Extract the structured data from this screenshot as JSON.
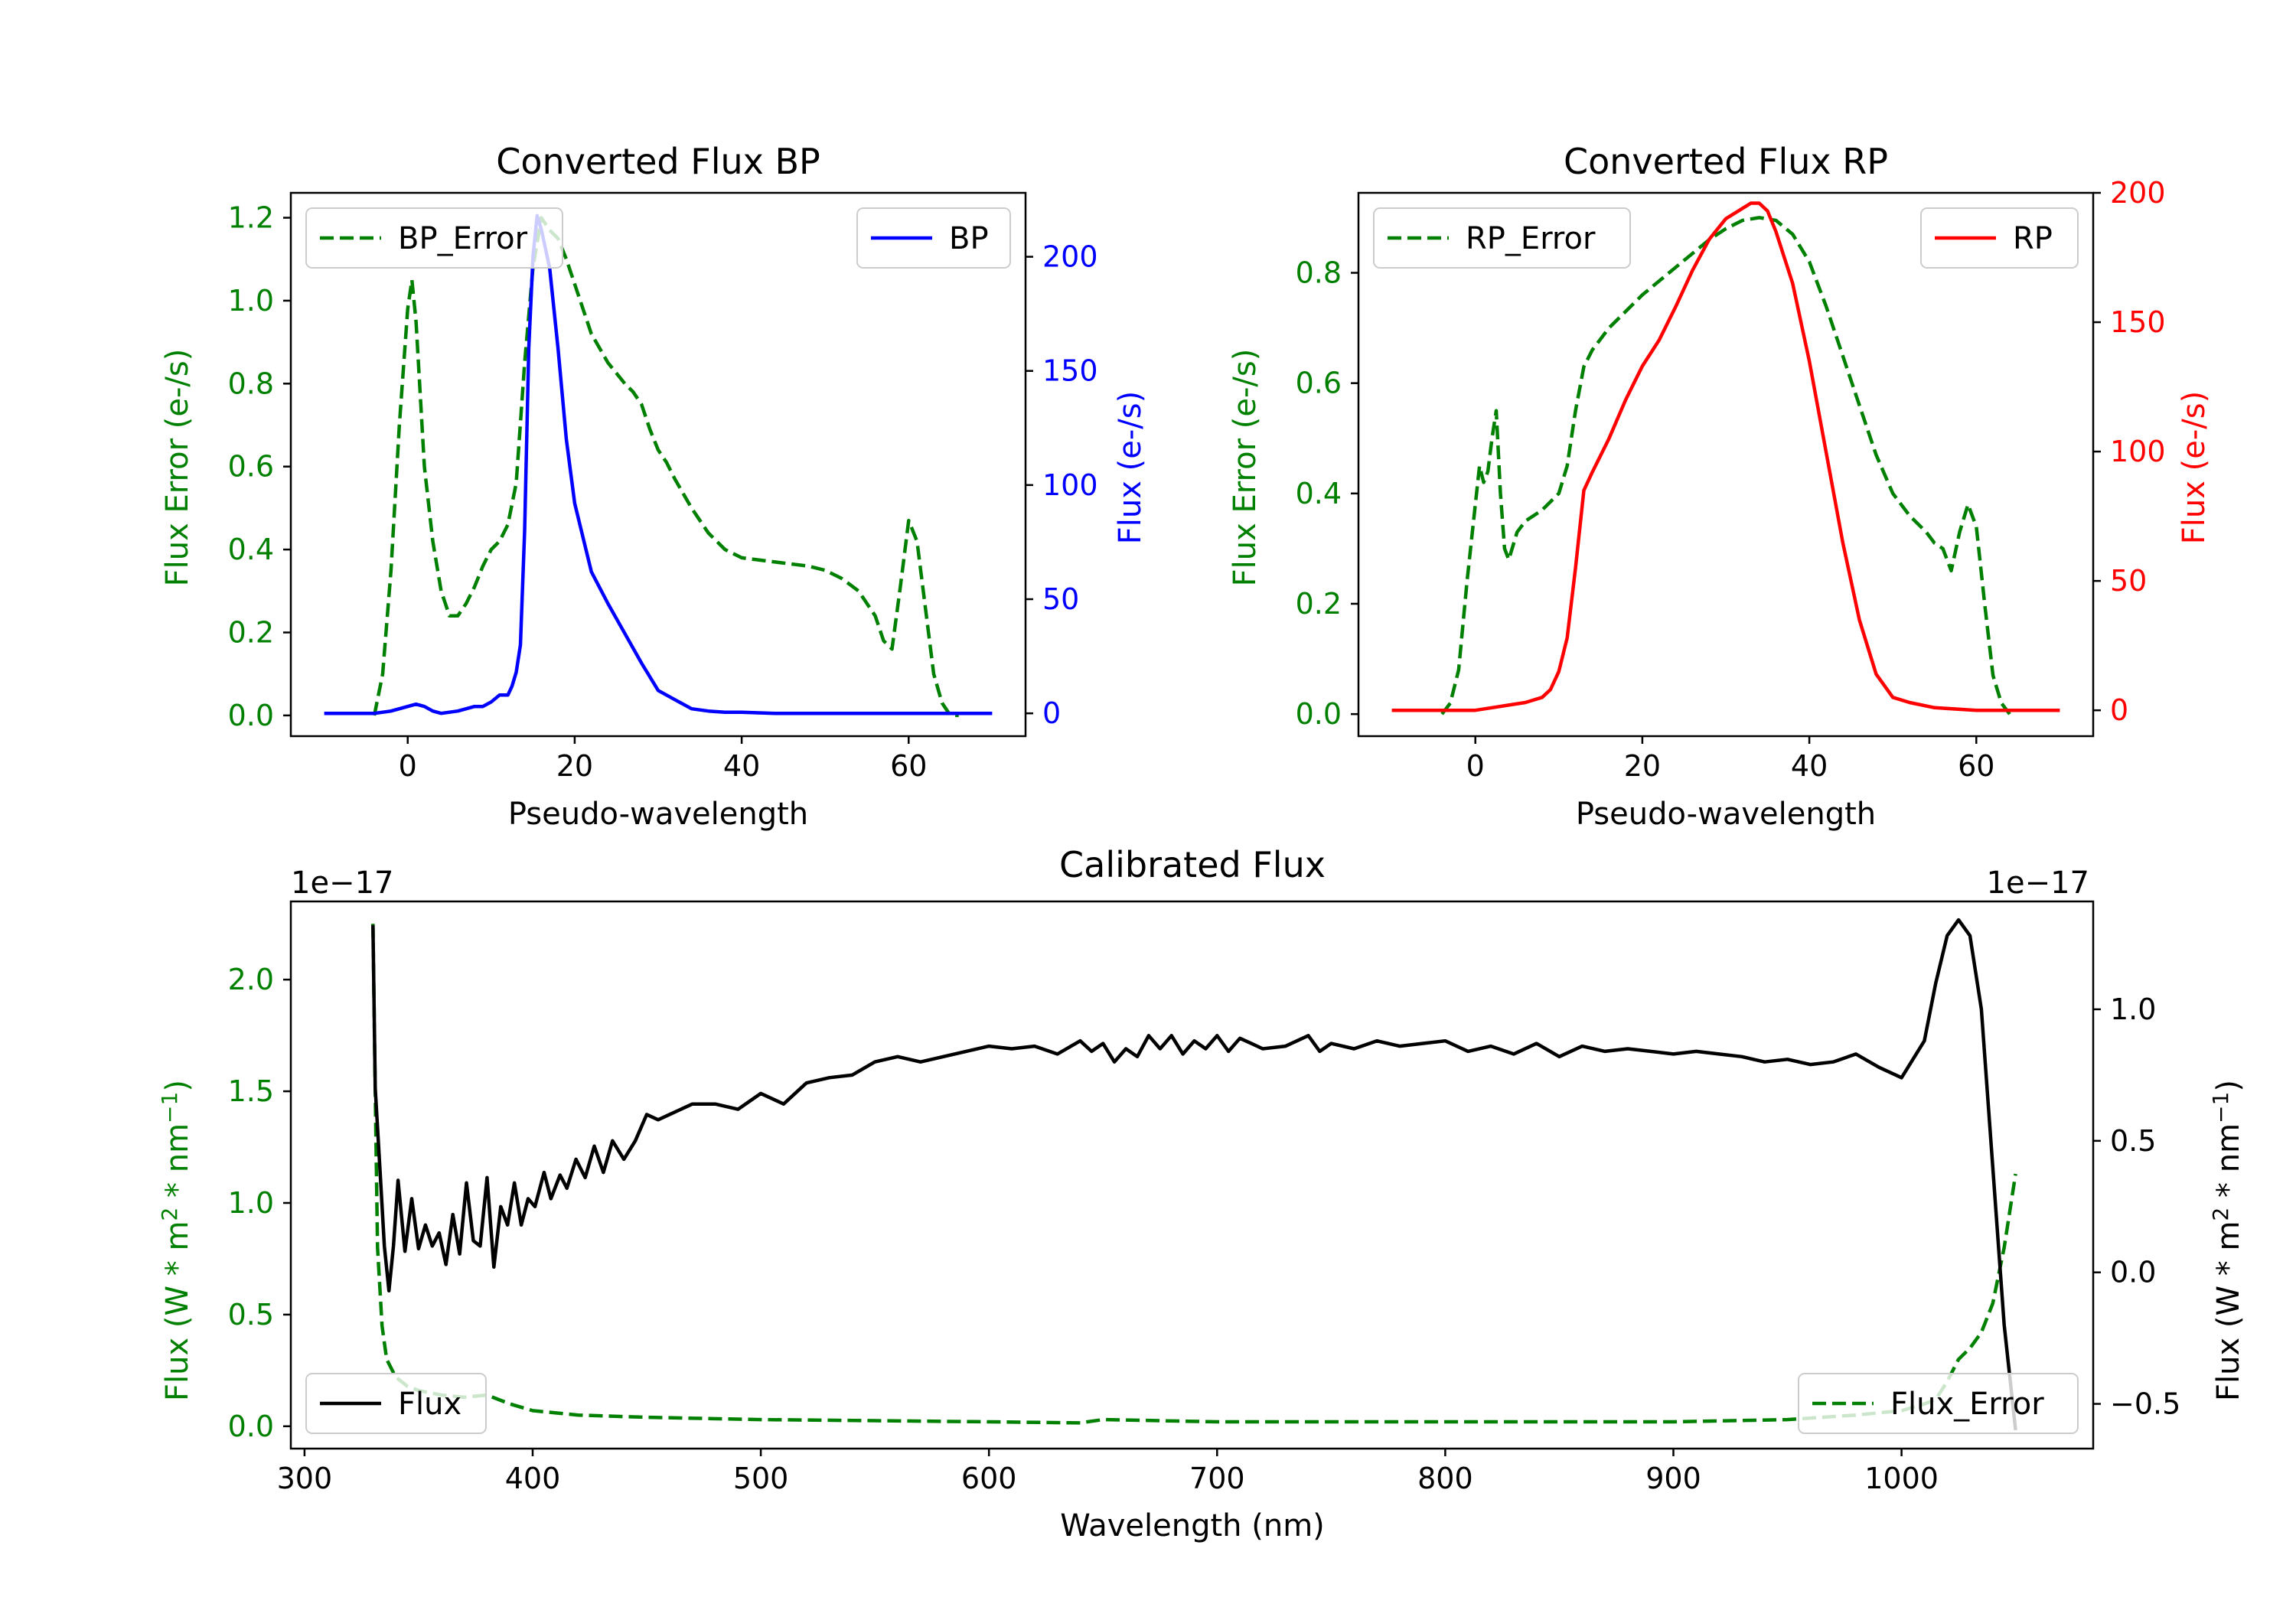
{
  "chart_data": [
    {
      "type": "line",
      "title": "Converted Flux BP",
      "xlabel": "Pseudo-wavelength",
      "ylabel_left": "Flux Error (e-/s)",
      "ylabel_right": "Flux (e-/s)",
      "xlim": [
        -14,
        74
      ],
      "ylim_left": [
        -0.05,
        1.26
      ],
      "ylim_right": [
        -10,
        228
      ],
      "xticks": [
        0,
        20,
        40,
        60
      ],
      "xtick_labels": [
        "0",
        "20",
        "40",
        "60"
      ],
      "yticks_left": [
        0.0,
        0.2,
        0.4,
        0.6,
        0.8,
        1.0,
        1.2
      ],
      "ytick_labels_left": [
        "0.0",
        "0.2",
        "0.4",
        "0.6",
        "0.8",
        "1.0",
        "1.2"
      ],
      "yticks_right": [
        0,
        50,
        100,
        150,
        200
      ],
      "ytick_labels_right": [
        "0",
        "50",
        "100",
        "150",
        "200"
      ],
      "left_color": "#008000",
      "right_color": "#0000ff",
      "series": [
        {
          "name": "BP_Error",
          "axis": "left",
          "style": "dashed",
          "color": "#008000",
          "legend": "upper-left",
          "x": [
            -4,
            -3,
            -2,
            -1,
            0,
            0.5,
            1,
            2,
            3,
            4,
            5,
            6,
            7,
            8,
            9,
            10,
            11,
            12,
            13,
            14,
            15,
            16,
            17,
            18,
            19,
            20,
            21,
            22,
            24,
            26,
            27,
            28,
            29,
            30,
            31,
            32,
            34,
            36,
            38,
            40,
            44,
            48,
            50,
            52,
            54,
            56,
            57,
            58,
            59,
            60,
            61,
            62,
            63,
            64,
            65,
            66
          ],
          "y": [
            0.0,
            0.1,
            0.35,
            0.7,
            0.98,
            1.05,
            0.95,
            0.6,
            0.42,
            0.3,
            0.24,
            0.24,
            0.27,
            0.31,
            0.36,
            0.4,
            0.42,
            0.46,
            0.56,
            0.85,
            1.08,
            1.2,
            1.17,
            1.15,
            1.1,
            1.04,
            0.98,
            0.92,
            0.85,
            0.8,
            0.78,
            0.75,
            0.69,
            0.64,
            0.61,
            0.57,
            0.5,
            0.44,
            0.4,
            0.38,
            0.37,
            0.36,
            0.35,
            0.33,
            0.3,
            0.24,
            0.18,
            0.16,
            0.31,
            0.47,
            0.42,
            0.26,
            0.1,
            0.03,
            0.0,
            0.0
          ]
        },
        {
          "name": "BP",
          "axis": "right",
          "style": "solid",
          "color": "#0000ff",
          "legend": "upper-right",
          "x": [
            -10,
            -6,
            -4,
            -2,
            0,
            1,
            2,
            3,
            4,
            6,
            7,
            8,
            9,
            10,
            11,
            12,
            12.5,
            13,
            13.5,
            14,
            14.5,
            15,
            15.5,
            16,
            17,
            18,
            19,
            20,
            22,
            24,
            26,
            28,
            30,
            32,
            34,
            36,
            38,
            40,
            44,
            48,
            52,
            56,
            60,
            65,
            70
          ],
          "y": [
            0,
            0,
            0,
            1,
            3,
            4,
            3,
            1,
            0,
            1,
            2,
            3,
            3,
            5,
            8,
            8,
            12,
            18,
            30,
            80,
            160,
            200,
            218,
            212,
            195,
            160,
            120,
            92,
            62,
            48,
            35,
            22,
            10,
            6,
            2,
            1,
            0.5,
            0.5,
            0,
            0,
            0,
            0,
            0,
            0,
            0
          ]
        }
      ]
    },
    {
      "type": "line",
      "title": "Converted Flux RP",
      "xlabel": "Pseudo-wavelength",
      "ylabel_left": "Flux Error (e-/s)",
      "ylabel_right": "Flux (e-/s)",
      "xlim": [
        -14,
        74
      ],
      "ylim_left": [
        -0.04,
        0.945
      ],
      "ylim_right": [
        -10,
        200
      ],
      "xticks": [
        0,
        20,
        40,
        60
      ],
      "xtick_labels": [
        "0",
        "20",
        "40",
        "60"
      ],
      "yticks_left": [
        0.0,
        0.2,
        0.4,
        0.6,
        0.8
      ],
      "ytick_labels_left": [
        "0.0",
        "0.2",
        "0.4",
        "0.6",
        "0.8"
      ],
      "yticks_right": [
        0,
        50,
        100,
        150,
        200
      ],
      "ytick_labels_right": [
        "0",
        "50",
        "100",
        "150",
        "200"
      ],
      "left_color": "#008000",
      "right_color": "#ff0000",
      "series": [
        {
          "name": "RP_Error",
          "axis": "left",
          "style": "dashed",
          "color": "#008000",
          "legend": "upper-left",
          "x": [
            -4,
            -3,
            -2,
            -1,
            0,
            0.5,
            1,
            1.5,
            2,
            2.5,
            3,
            3.5,
            4,
            5,
            6,
            8,
            10,
            11,
            12,
            13,
            14,
            16,
            18,
            20,
            24,
            28,
            30,
            32,
            34,
            36,
            38,
            40,
            42,
            44,
            46,
            48,
            50,
            52,
            54,
            55,
            56,
            57,
            58,
            59,
            60,
            61,
            62,
            63,
            64
          ],
          "y": [
            0.0,
            0.02,
            0.08,
            0.24,
            0.38,
            0.45,
            0.42,
            0.44,
            0.5,
            0.55,
            0.4,
            0.3,
            0.28,
            0.33,
            0.35,
            0.37,
            0.4,
            0.45,
            0.55,
            0.63,
            0.66,
            0.7,
            0.73,
            0.76,
            0.81,
            0.86,
            0.88,
            0.895,
            0.9,
            0.895,
            0.87,
            0.82,
            0.74,
            0.65,
            0.56,
            0.47,
            0.4,
            0.36,
            0.33,
            0.31,
            0.3,
            0.26,
            0.33,
            0.38,
            0.34,
            0.2,
            0.07,
            0.02,
            0.0
          ]
        },
        {
          "name": "RP",
          "axis": "right",
          "style": "solid",
          "color": "#ff0000",
          "legend": "upper-right",
          "x": [
            -10,
            -6,
            -3,
            0,
            2,
            4,
            6,
            8,
            9,
            10,
            11,
            12,
            13,
            14,
            16,
            18,
            20,
            22,
            24,
            26,
            28,
            30,
            32,
            33,
            34,
            35,
            36,
            38,
            40,
            42,
            44,
            46,
            48,
            50,
            52,
            55,
            60,
            65,
            70
          ],
          "y": [
            0,
            0,
            0,
            0,
            1,
            2,
            3,
            5,
            8,
            15,
            28,
            55,
            85,
            92,
            105,
            120,
            133,
            143,
            156,
            170,
            182,
            190,
            194,
            196,
            196,
            193,
            185,
            165,
            135,
            100,
            65,
            35,
            14,
            5,
            3,
            1,
            0,
            0,
            0
          ]
        }
      ]
    },
    {
      "type": "line",
      "title": "Calibrated Flux",
      "xlabel": "Wavelength (nm)",
      "ylabel_left": "Flux (W * m^2 * nm^-1)",
      "ylabel_right": "Flux (W * m^2 * nm^-1)",
      "ylabel_parts": {
        "pre": "Flux (W * m",
        "sup1": "2",
        "mid": " * nm",
        "sup2": "−1",
        "post": ")"
      },
      "offset_left": "1e−17",
      "offset_right": "1e−17",
      "xlim": [
        294,
        1084
      ],
      "ylim_left": [
        -0.1,
        2.35
      ],
      "ylim_right": [
        -0.67,
        1.41
      ],
      "xticks": [
        300,
        400,
        500,
        600,
        700,
        800,
        900,
        1000
      ],
      "xtick_labels": [
        "300",
        "400",
        "500",
        "600",
        "700",
        "800",
        "900",
        "1000"
      ],
      "yticks_left": [
        0.0,
        0.5,
        1.0,
        1.5,
        2.0
      ],
      "ytick_labels_left": [
        "0.0",
        "0.5",
        "1.0",
        "1.5",
        "2.0"
      ],
      "yticks_right": [
        -0.5,
        0.0,
        0.5,
        1.0
      ],
      "ytick_labels_right": [
        "−0.5",
        "0.0",
        "0.5",
        "1.0"
      ],
      "left_color": "#008000",
      "right_color": "#000000",
      "series": [
        {
          "name": "Flux_Error",
          "axis": "left",
          "style": "dashed",
          "color": "#008000",
          "legend": "lower-right",
          "x": [
            330,
            331,
            332,
            334,
            336,
            340,
            345,
            350,
            360,
            370,
            380,
            390,
            400,
            420,
            450,
            500,
            550,
            600,
            640,
            650,
            700,
            750,
            800,
            850,
            900,
            950,
            980,
            1000,
            1010,
            1015,
            1020,
            1025,
            1030,
            1035,
            1040,
            1045,
            1050
          ],
          "y": [
            2.25,
            1.5,
            0.8,
            0.45,
            0.3,
            0.22,
            0.18,
            0.16,
            0.14,
            0.13,
            0.14,
            0.1,
            0.07,
            0.05,
            0.04,
            0.03,
            0.025,
            0.02,
            0.015,
            0.03,
            0.02,
            0.02,
            0.02,
            0.02,
            0.02,
            0.03,
            0.05,
            0.07,
            0.1,
            0.12,
            0.2,
            0.3,
            0.35,
            0.42,
            0.55,
            0.8,
            1.13
          ]
        },
        {
          "name": "Flux",
          "axis": "right",
          "style": "solid",
          "color": "#000000",
          "legend": "lower-left",
          "x": [
            330,
            331,
            333,
            335,
            337,
            339,
            341,
            344,
            347,
            350,
            353,
            356,
            359,
            362,
            365,
            368,
            371,
            374,
            377,
            380,
            383,
            386,
            389,
            392,
            395,
            398,
            401,
            405,
            408,
            412,
            415,
            419,
            423,
            427,
            431,
            435,
            440,
            445,
            450,
            455,
            460,
            470,
            480,
            490,
            500,
            510,
            520,
            530,
            540,
            550,
            560,
            570,
            580,
            590,
            600,
            610,
            620,
            630,
            640,
            645,
            650,
            655,
            660,
            665,
            670,
            675,
            680,
            685,
            690,
            695,
            700,
            705,
            710,
            715,
            720,
            730,
            740,
            745,
            750,
            760,
            770,
            780,
            790,
            800,
            810,
            820,
            830,
            840,
            850,
            860,
            870,
            880,
            890,
            900,
            910,
            920,
            930,
            940,
            950,
            960,
            970,
            980,
            990,
            1000,
            1010,
            1015,
            1020,
            1025,
            1030,
            1035,
            1040,
            1045,
            1050
          ],
          "y": [
            1.32,
            0.7,
            0.4,
            0.1,
            -0.07,
            0.1,
            0.35,
            0.08,
            0.28,
            0.09,
            0.18,
            0.1,
            0.15,
            0.03,
            0.22,
            0.07,
            0.34,
            0.12,
            0.1,
            0.36,
            0.02,
            0.25,
            0.18,
            0.34,
            0.18,
            0.28,
            0.25,
            0.38,
            0.28,
            0.37,
            0.32,
            0.43,
            0.36,
            0.48,
            0.38,
            0.5,
            0.43,
            0.5,
            0.6,
            0.58,
            0.6,
            0.64,
            0.64,
            0.62,
            0.68,
            0.64,
            0.72,
            0.74,
            0.75,
            0.8,
            0.82,
            0.8,
            0.82,
            0.84,
            0.86,
            0.85,
            0.86,
            0.83,
            0.88,
            0.84,
            0.87,
            0.8,
            0.85,
            0.82,
            0.9,
            0.85,
            0.9,
            0.83,
            0.88,
            0.85,
            0.9,
            0.84,
            0.89,
            0.87,
            0.85,
            0.86,
            0.9,
            0.84,
            0.87,
            0.85,
            0.88,
            0.86,
            0.87,
            0.88,
            0.84,
            0.86,
            0.83,
            0.87,
            0.82,
            0.86,
            0.84,
            0.85,
            0.84,
            0.83,
            0.84,
            0.83,
            0.82,
            0.8,
            0.81,
            0.79,
            0.8,
            0.83,
            0.78,
            0.74,
            0.88,
            1.1,
            1.28,
            1.34,
            1.28,
            1.0,
            0.4,
            -0.2,
            -0.6
          ]
        }
      ]
    }
  ]
}
